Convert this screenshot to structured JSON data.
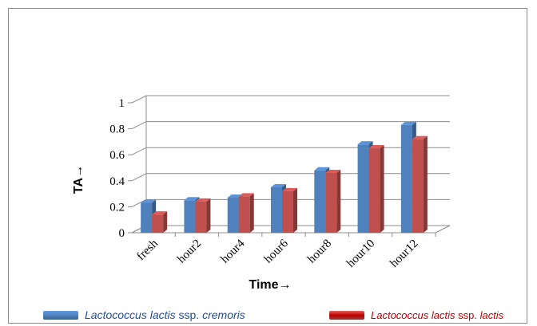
{
  "chart_data": {
    "type": "bar",
    "categories": [
      "fresh",
      "hour2",
      "hour4",
      "hour6",
      "hour8",
      "hour10",
      "hour12"
    ],
    "series": [
      {
        "name_italic": "Lactococcus lactis",
        "name_plain": " ssp. ",
        "name_italic2": "cremoris",
        "color": "#4f81bd",
        "values": [
          0.23,
          0.25,
          0.27,
          0.35,
          0.48,
          0.68,
          0.83
        ]
      },
      {
        "name_italic": "Lactococcus lactis",
        "name_plain": " ssp. ",
        "name_italic2": "lactis",
        "color": "#c0504d",
        "values": [
          0.14,
          0.24,
          0.28,
          0.32,
          0.46,
          0.65,
          0.72
        ]
      }
    ],
    "xlabel": "Time→",
    "ylabel": "TA→",
    "ylim": [
      0,
      1
    ],
    "yticks": [
      "0",
      "0.2",
      "0.4",
      "0.6",
      "0.8",
      "1"
    ],
    "grid": true,
    "legend_position": "bottom"
  }
}
